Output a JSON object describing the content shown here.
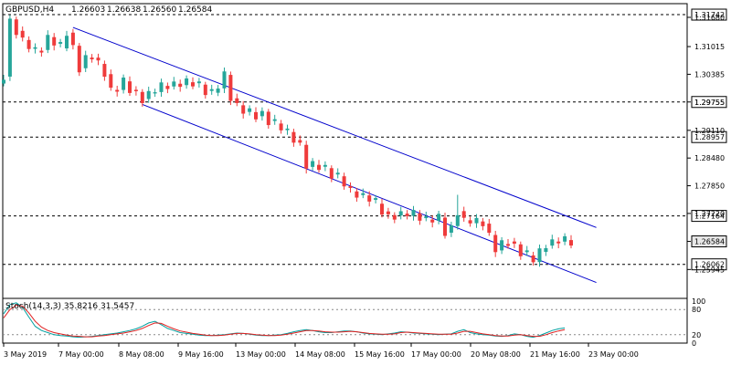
{
  "header": {
    "title": "GBPUSD,H4",
    "open": "1.26603",
    "high": "1.26638",
    "low": "1.26560",
    "close": "1.26584"
  },
  "stoch": {
    "label": "Stoch(14,3,3) 35.8216 31.5457",
    "ticks": [
      "100",
      "80",
      "20",
      "0"
    ]
  },
  "colors": {
    "bull": "#26a69a",
    "bear": "#ef3b3b",
    "channel": "#0000cc",
    "stoch_main": "#00a0a0",
    "stoch_signal": "#e02020",
    "grid": "#888888"
  },
  "chart_data": {
    "type": "candlestick",
    "price_axis": {
      "min": 1.2535,
      "max": 1.3195,
      "ticks": [
        "1.31680",
        "1.31015",
        "1.30385",
        "1.29755",
        "1.29110",
        "1.28480",
        "1.27850",
        "1.27220",
        "1.26584",
        "1.25945"
      ]
    },
    "levels": [
      {
        "value": 1.31742,
        "label": "1.31742"
      },
      {
        "value": 1.29755,
        "label": "1.29755"
      },
      {
        "value": 1.28957,
        "label": "1.28957"
      },
      {
        "value": 1.27164,
        "label": "1.27164"
      },
      {
        "value": 1.26062,
        "label": "1.26062"
      }
    ],
    "current_price": {
      "value": 1.26584,
      "label": "1.26584"
    },
    "time_labels": [
      "3 May 2019",
      "7 May 00:00",
      "8 May 08:00",
      "9 May 16:00",
      "13 May 00:00",
      "14 May 08:00",
      "15 May 16:00",
      "17 May 00:00",
      "20 May 08:00",
      "21 May 16:00",
      "23 May 00:00"
    ],
    "channel": {
      "upper": [
        [
          11,
          1.3145
        ],
        [
          94,
          1.269
        ]
      ],
      "lower": [
        [
          22,
          1.297
        ],
        [
          94,
          1.2565
        ]
      ]
    },
    "close_path": [
      [
        0,
        1.3035
      ],
      [
        1,
        1.316
      ],
      [
        2,
        1.314
      ],
      [
        3,
        1.3115
      ],
      [
        4,
        1.31
      ],
      [
        5,
        1.309
      ],
      [
        6,
        1.3095
      ],
      [
        7,
        1.312
      ],
      [
        8,
        1.311
      ],
      [
        9,
        1.3095
      ],
      [
        10,
        1.3135
      ],
      [
        11,
        1.31
      ],
      [
        12,
        1.3055
      ],
      [
        13,
        1.3075
      ],
      [
        14,
        1.308
      ],
      [
        15,
        1.306
      ],
      [
        16,
        1.304
      ],
      [
        17,
        1.3
      ],
      [
        18,
        1.3005
      ],
      [
        19,
        1.302
      ],
      [
        20,
        1.3005
      ],
      [
        22,
        1.2985
      ],
      [
        25,
        1.301
      ],
      [
        30,
        1.302
      ],
      [
        33,
        1.2995
      ],
      [
        34,
        1.301
      ],
      [
        35,
        1.3035
      ],
      [
        36,
        1.2985
      ],
      [
        37,
        1.2965
      ],
      [
        38,
        1.2955
      ],
      [
        40,
        1.2945
      ],
      [
        41,
        1.295
      ],
      [
        42,
        1.2935
      ],
      [
        45,
        1.2905
      ],
      [
        47,
        1.2875
      ],
      [
        48,
        1.283
      ],
      [
        50,
        1.283
      ],
      [
        53,
        1.2805
      ],
      [
        55,
        1.277
      ],
      [
        58,
        1.2755
      ],
      [
        61,
        1.2715
      ],
      [
        62,
        1.272
      ],
      [
        65,
        1.272
      ],
      [
        67,
        1.2705
      ],
      [
        69,
        1.271
      ],
      [
        70,
        1.268
      ],
      [
        71,
        1.269
      ],
      [
        72,
        1.273
      ],
      [
        73,
        1.2705
      ],
      [
        76,
        1.27
      ],
      [
        78,
        1.264
      ],
      [
        80,
        1.266
      ],
      [
        83,
        1.2625
      ],
      [
        84,
        1.2615
      ],
      [
        86,
        1.265
      ],
      [
        88,
        1.266
      ],
      [
        90,
        1.2658
      ]
    ],
    "stochastic": {
      "range": [
        0,
        100
      ],
      "main_value": 35.8216,
      "signal_value": 31.5457,
      "main": [
        70,
        92,
        96,
        85,
        62,
        40,
        30,
        25,
        20,
        18,
        17,
        15,
        14,
        15,
        16,
        18,
        20,
        22,
        24,
        27,
        30,
        34,
        40,
        48,
        52,
        44,
        35,
        30,
        25,
        23,
        21,
        19,
        18,
        18,
        19,
        20,
        22,
        24,
        23,
        21,
        19,
        18,
        18,
        19,
        20,
        23,
        27,
        30,
        32,
        30,
        27,
        25,
        25,
        27,
        29,
        29,
        27,
        24,
        22,
        21,
        20,
        22,
        24,
        27,
        26,
        24,
        23,
        22,
        21,
        20,
        21,
        22,
        28,
        32,
        25,
        22,
        20,
        19,
        17,
        16,
        18,
        22,
        20,
        16,
        14,
        18,
        24,
        30,
        34,
        36
      ],
      "signal": [
        60,
        80,
        90,
        88,
        72,
        52,
        38,
        30,
        25,
        22,
        19,
        17,
        16,
        15,
        15,
        17,
        18,
        20,
        22,
        24,
        27,
        30,
        35,
        42,
        48,
        47,
        40,
        34,
        29,
        26,
        23,
        21,
        19,
        18,
        18,
        19,
        21,
        23,
        23,
        22,
        20,
        19,
        18,
        18,
        19,
        21,
        24,
        27,
        30,
        30,
        29,
        27,
        26,
        26,
        27,
        28,
        27,
        25,
        23,
        22,
        21,
        21,
        22,
        25,
        26,
        25,
        24,
        23,
        22,
        21,
        21,
        21,
        24,
        28,
        28,
        25,
        22,
        20,
        18,
        17,
        17,
        19,
        20,
        18,
        16,
        16,
        20,
        25,
        29,
        32
      ]
    }
  }
}
